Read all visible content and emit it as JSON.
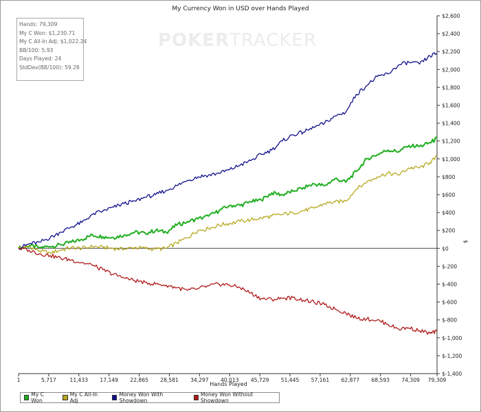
{
  "chart_data": {
    "type": "line",
    "title": "My Currency Won in USD over Hands Played",
    "xlabel": "Hands Played",
    "ylabel": "$",
    "x_ticks": [
      "1",
      "5,717",
      "11,433",
      "17,149",
      "22,865",
      "28,581",
      "34,297",
      "40,013",
      "45,729",
      "51,445",
      "57,161",
      "62,877",
      "68,593",
      "74,309",
      "79,309"
    ],
    "x_tick_values": [
      1,
      5717,
      11433,
      17149,
      22865,
      28581,
      34297,
      40013,
      45729,
      51445,
      57161,
      62877,
      68593,
      74309,
      79309
    ],
    "xlim": [
      1,
      79309
    ],
    "y_ticks": [
      "$2,600",
      "$2,400",
      "$2,200",
      "$2,000",
      "$1,800",
      "$1,600",
      "$1,400",
      "$1,200",
      "$1,000",
      "$800",
      "$600",
      "$400",
      "$200",
      "$0",
      "$-200",
      "$-400",
      "$-600",
      "$-800",
      "$-1,000",
      "$-1,200",
      "$-1,400"
    ],
    "y_tick_values": [
      2600,
      2400,
      2200,
      2000,
      1800,
      1600,
      1400,
      1200,
      1000,
      800,
      600,
      400,
      200,
      0,
      -200,
      -400,
      -600,
      -800,
      -1000,
      -1200,
      -1400
    ],
    "ylim": [
      -1400,
      2600
    ],
    "grid": false,
    "legend_position": "bottom-left",
    "series": [
      {
        "name": "My C Won",
        "color": "#1fae1f",
        "x": [
          1,
          2000,
          4000,
          6000,
          8000,
          10000,
          12000,
          14000,
          16000,
          18000,
          20000,
          22000,
          24000,
          26000,
          28000,
          30000,
          32000,
          34000,
          36000,
          38000,
          40000,
          42000,
          44000,
          46000,
          48000,
          50000,
          52000,
          54000,
          56000,
          58000,
          60000,
          62000,
          64000,
          66000,
          68000,
          70000,
          72000,
          74000,
          76000,
          78000,
          79309
        ],
        "y": [
          0,
          30,
          10,
          20,
          40,
          70,
          100,
          150,
          130,
          120,
          150,
          180,
          170,
          200,
          180,
          260,
          300,
          330,
          360,
          420,
          480,
          480,
          520,
          540,
          620,
          600,
          640,
          680,
          720,
          700,
          780,
          740,
          860,
          1000,
          1050,
          1100,
          1080,
          1150,
          1140,
          1180,
          1230
        ]
      },
      {
        "name": "My C All-In Adj",
        "color": "#b5a81e",
        "x": [
          1,
          2000,
          4000,
          6000,
          8000,
          10000,
          12000,
          14000,
          16000,
          18000,
          20000,
          22000,
          24000,
          26000,
          28000,
          30000,
          32000,
          34000,
          36000,
          38000,
          40000,
          42000,
          44000,
          46000,
          48000,
          50000,
          52000,
          54000,
          56000,
          58000,
          60000,
          62000,
          64000,
          66000,
          68000,
          70000,
          72000,
          74000,
          76000,
          78000,
          79309
        ],
        "y": [
          0,
          20,
          -30,
          -50,
          -20,
          10,
          0,
          20,
          10,
          0,
          -10,
          10,
          0,
          -10,
          0,
          60,
          120,
          200,
          220,
          260,
          280,
          300,
          320,
          340,
          360,
          380,
          400,
          420,
          450,
          500,
          520,
          530,
          660,
          740,
          800,
          840,
          820,
          900,
          900,
          960,
          1022
        ]
      },
      {
        "name": "Money Won With Showdown",
        "color": "#0f0f8c",
        "x": [
          1,
          2000,
          4000,
          6000,
          8000,
          10000,
          12000,
          14000,
          16000,
          18000,
          20000,
          22000,
          24000,
          26000,
          28000,
          30000,
          32000,
          34000,
          36000,
          38000,
          40000,
          42000,
          44000,
          46000,
          48000,
          50000,
          52000,
          54000,
          56000,
          58000,
          60000,
          62000,
          64000,
          66000,
          68000,
          70000,
          72000,
          74000,
          76000,
          78000,
          79309
        ],
        "y": [
          0,
          50,
          70,
          120,
          180,
          240,
          290,
          380,
          420,
          460,
          500,
          530,
          570,
          600,
          650,
          700,
          760,
          800,
          820,
          840,
          880,
          930,
          980,
          1050,
          1100,
          1200,
          1270,
          1300,
          1350,
          1400,
          1480,
          1520,
          1720,
          1820,
          1920,
          1950,
          2050,
          2080,
          2060,
          2150,
          2180
        ]
      },
      {
        "name": "Money Won Without Showdown",
        "color": "#b01818",
        "x": [
          1,
          2000,
          4000,
          6000,
          8000,
          10000,
          12000,
          14000,
          16000,
          18000,
          20000,
          22000,
          24000,
          26000,
          28000,
          30000,
          32000,
          34000,
          36000,
          38000,
          40000,
          42000,
          44000,
          46000,
          48000,
          50000,
          52000,
          54000,
          56000,
          58000,
          60000,
          62000,
          64000,
          66000,
          68000,
          70000,
          72000,
          74000,
          76000,
          78000,
          79309
        ],
        "y": [
          0,
          -20,
          -60,
          -80,
          -110,
          -130,
          -160,
          -190,
          -240,
          -290,
          -330,
          -360,
          -380,
          -400,
          -410,
          -440,
          -470,
          -450,
          -420,
          -400,
          -410,
          -440,
          -500,
          -560,
          -570,
          -560,
          -550,
          -580,
          -600,
          -630,
          -680,
          -720,
          -780,
          -790,
          -800,
          -850,
          -900,
          -890,
          -920,
          -950,
          -930
        ]
      }
    ]
  },
  "stats": {
    "hands": "Hands: 79,309",
    "my_c_won": "My C Won: $1,230.71",
    "my_c_all_in_adj": "My C All-In Adj: $1,022.24",
    "bb_100": "BB/100: 5.93",
    "days_played": "Days Played: 24",
    "stddev": "StdDev(BB/100): 59.28"
  },
  "watermark": {
    "part1": "POKER",
    "part2": "TRACKER"
  }
}
